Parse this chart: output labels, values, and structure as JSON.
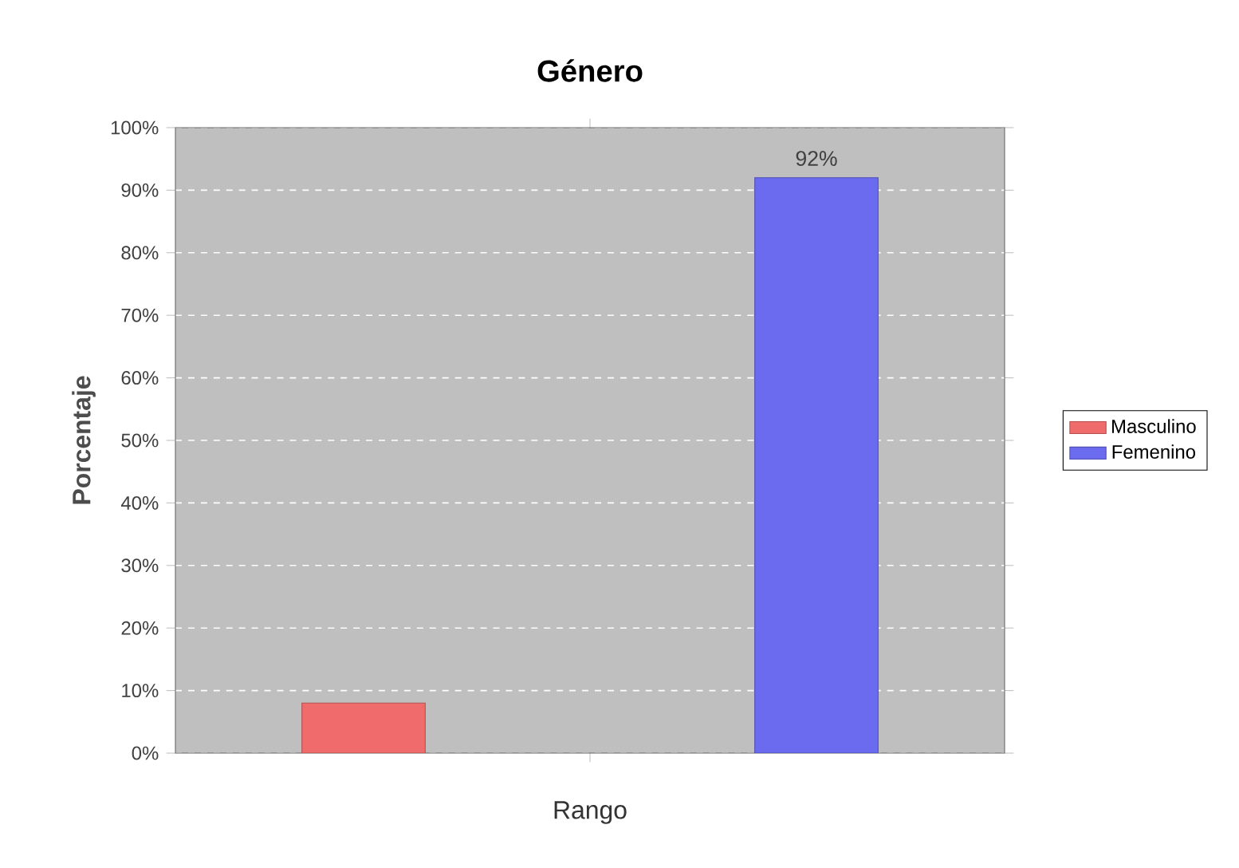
{
  "chart_data": {
    "type": "bar",
    "title": "Género",
    "xlabel": "Rango",
    "ylabel": "Porcentaje",
    "categories": [
      null
    ],
    "series": [
      {
        "name": "Masculino",
        "color": "#f06b6b",
        "values": [
          8
        ],
        "value_labels": [
          null
        ]
      },
      {
        "name": "Femenino",
        "color": "#6b6bf0",
        "values": [
          92
        ],
        "value_labels": [
          "92%"
        ]
      }
    ],
    "ylim": [
      0,
      100
    ],
    "yticks": [
      {
        "value": 0,
        "label": "0%"
      },
      {
        "value": 10,
        "label": "10%"
      },
      {
        "value": 20,
        "label": "20%"
      },
      {
        "value": 30,
        "label": "30%"
      },
      {
        "value": 40,
        "label": "40%"
      },
      {
        "value": 50,
        "label": "50%"
      },
      {
        "value": 60,
        "label": "60%"
      },
      {
        "value": 70,
        "label": "70%"
      },
      {
        "value": 80,
        "label": "80%"
      },
      {
        "value": 90,
        "label": "90%"
      },
      {
        "value": 100,
        "label": "100%"
      }
    ],
    "grid": "y",
    "legend": "right"
  }
}
